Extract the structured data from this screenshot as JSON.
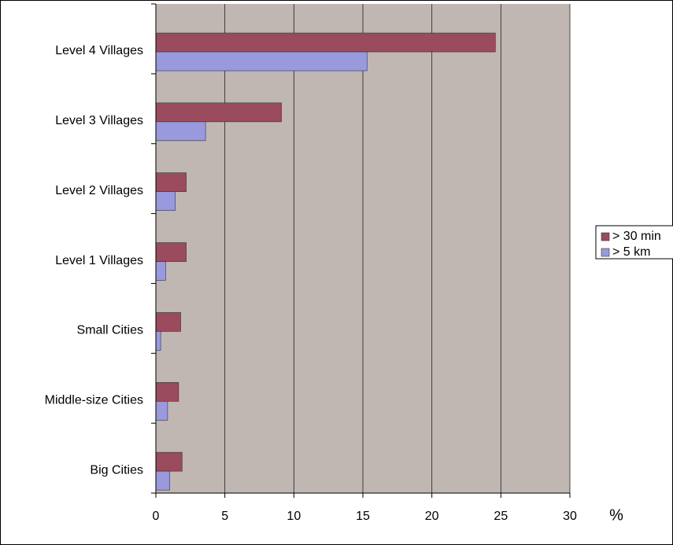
{
  "chart_data": {
    "type": "hbar",
    "categories": [
      "Level 4 Villages",
      "Level 3 Villages",
      "Level 2 Villages",
      "Level 1 Villages",
      "Small Cities",
      "Middle-size Cities",
      "Big Cities"
    ],
    "series": [
      {
        "name": "> 30 min",
        "color": "#9b4b5e",
        "values": [
          24.6,
          9.1,
          2.2,
          2.2,
          1.8,
          1.65,
          1.9
        ]
      },
      {
        "name": "> 5 km",
        "color": "#9999dd",
        "values": [
          15.3,
          3.6,
          1.4,
          0.7,
          0.35,
          0.85,
          1.0
        ]
      }
    ],
    "x_label": "%",
    "xlim": [
      0,
      30
    ],
    "xticks": [
      0,
      5,
      10,
      15,
      20,
      25,
      30
    ],
    "grid": true,
    "plot_background": "#c0b6b2",
    "legend": "right"
  }
}
